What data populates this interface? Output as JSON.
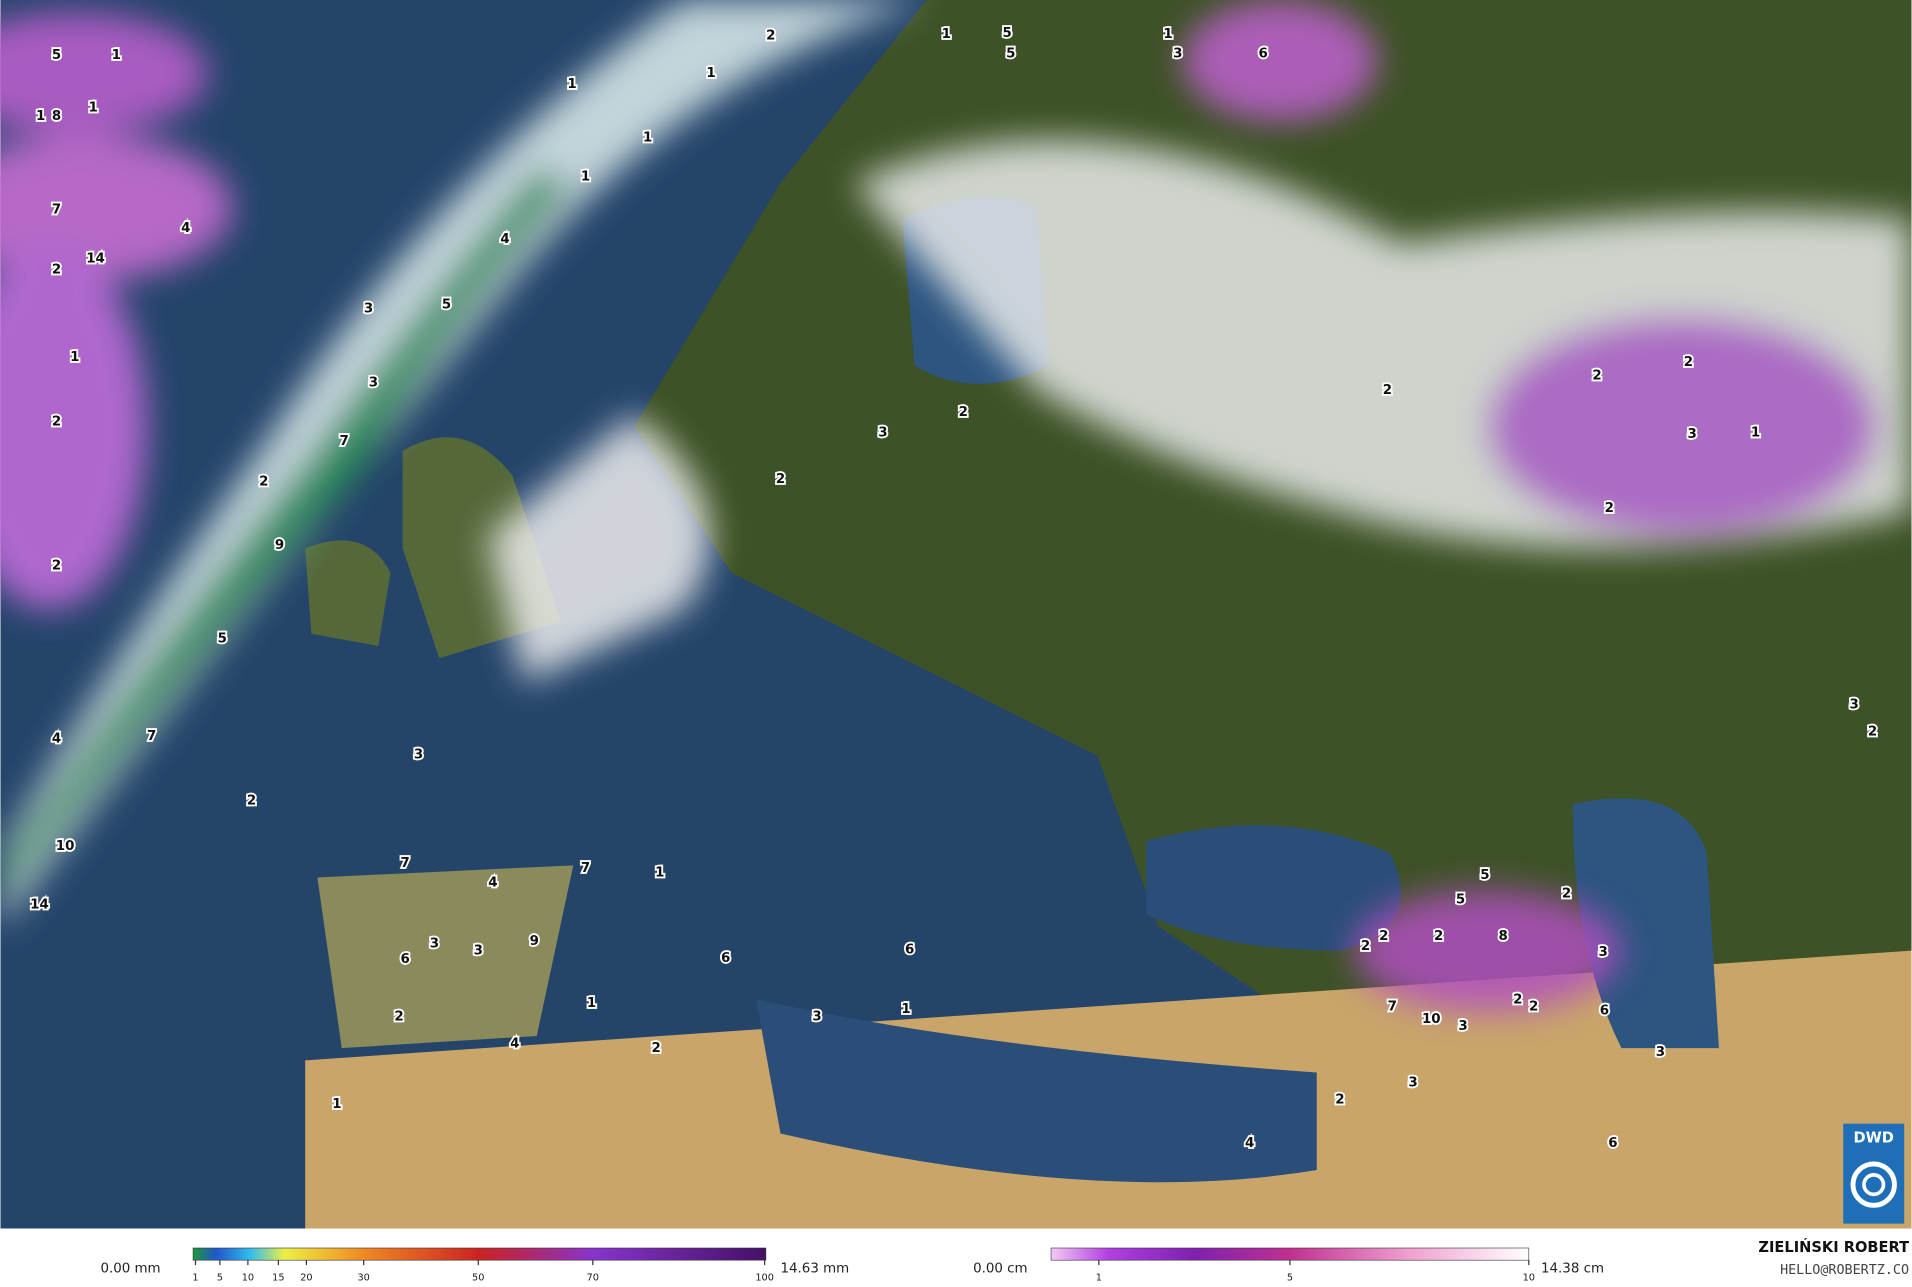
{
  "map": {
    "precip_labels": [
      5,
      1,
      1,
      8,
      1,
      7,
      4,
      14,
      2,
      2,
      1,
      1,
      1,
      1,
      4,
      3,
      5,
      3,
      7,
      1,
      2,
      2,
      9,
      2,
      5,
      7,
      4,
      2,
      10,
      14,
      7,
      4,
      7,
      1,
      3,
      3,
      6,
      3,
      9,
      2,
      1,
      4,
      2,
      6,
      6,
      3,
      1,
      1,
      3,
      2,
      2,
      5,
      5,
      3,
      1,
      6,
      2,
      2,
      3,
      1,
      2,
      2,
      3,
      2,
      5,
      2,
      5,
      3,
      2,
      2,
      2,
      8,
      2,
      2,
      7,
      10,
      3,
      6,
      3,
      3,
      2,
      4,
      6,
      1
    ]
  },
  "legend": {
    "rain": {
      "min_label": "0.00 mm",
      "ticks": [
        1,
        5,
        10,
        15,
        20,
        30,
        50,
        70,
        100
      ],
      "max_label": "14.63 mm"
    },
    "snow": {
      "min_label": "0.00 cm",
      "ticks": [
        1,
        5,
        10
      ],
      "max_label": "14.38 cm"
    }
  },
  "credit": {
    "name": "ZIELIŃSKI ROBERT",
    "email": "HELLO@ROBERTZ.CO"
  },
  "logo": "DWD"
}
